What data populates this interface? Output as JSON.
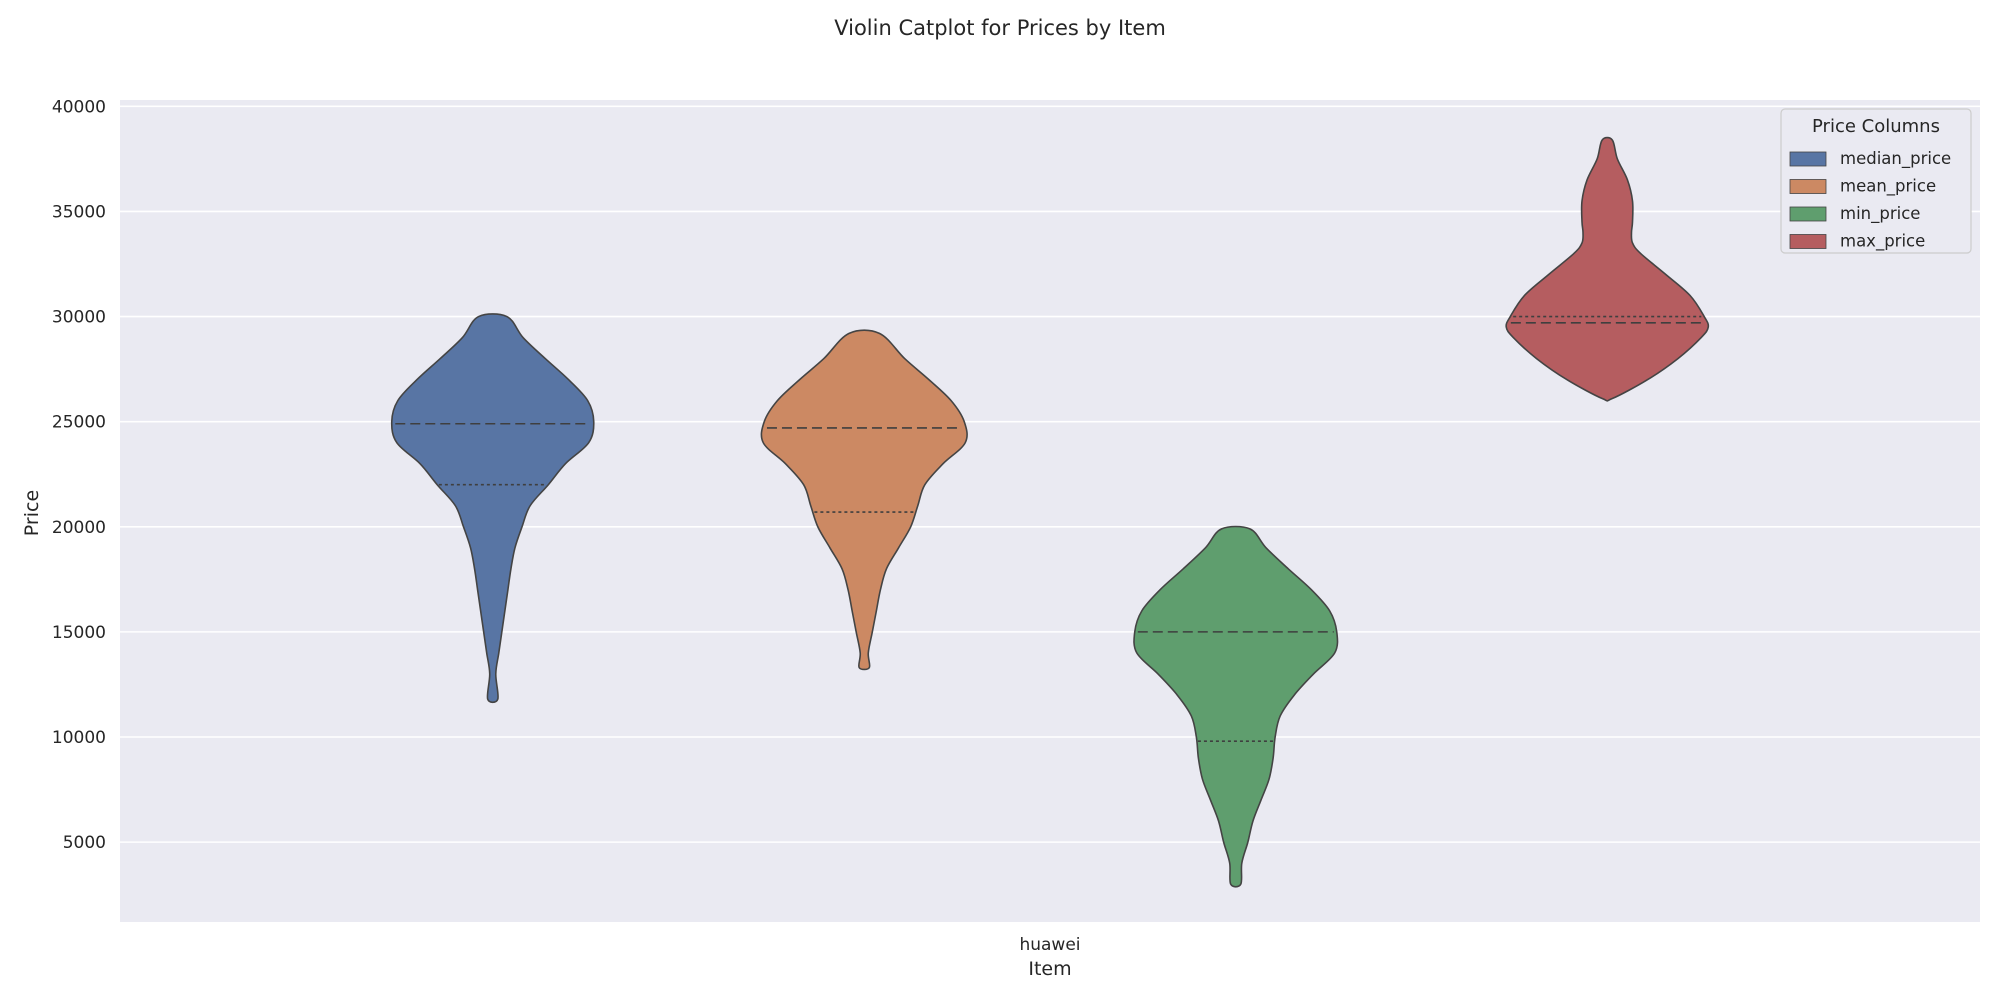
{
  "chart_data": {
    "type": "violin",
    "title": "Violin Catplot for Prices by Item",
    "xlabel": "Item",
    "ylabel": "Price",
    "categories": [
      "huawei"
    ],
    "ylim": [
      1200,
      40300
    ],
    "yticks": [
      5000,
      10000,
      15000,
      20000,
      25000,
      30000,
      35000,
      40000
    ],
    "grid": true,
    "legend": {
      "title": "Price Columns",
      "position": "top-right"
    },
    "series": [
      {
        "name": "median_price",
        "color": "#5875a4",
        "min": 11800,
        "max": 30000,
        "q1": 22000,
        "median": 24900,
        "q3": 24900,
        "profile": [
          [
            30000,
            0.14
          ],
          [
            29000,
            0.3
          ],
          [
            28000,
            0.52
          ],
          [
            27000,
            0.75
          ],
          [
            26000,
            0.94
          ],
          [
            25000,
            1.0
          ],
          [
            24000,
            0.95
          ],
          [
            23000,
            0.72
          ],
          [
            22000,
            0.55
          ],
          [
            21000,
            0.37
          ],
          [
            20000,
            0.29
          ],
          [
            19000,
            0.22
          ],
          [
            18000,
            0.18
          ],
          [
            17000,
            0.15
          ],
          [
            16000,
            0.12
          ],
          [
            15000,
            0.09
          ],
          [
            14000,
            0.06
          ],
          [
            13000,
            0.03
          ],
          [
            11800,
            0.05
          ]
        ]
      },
      {
        "name": "mean_price",
        "color": "#cc8963",
        "min": 13300,
        "max": 29200,
        "q1": 20700,
        "median": 24700,
        "q3": 24700,
        "profile": [
          [
            29200,
            0.15
          ],
          [
            28000,
            0.4
          ],
          [
            27000,
            0.64
          ],
          [
            26000,
            0.86
          ],
          [
            25000,
            0.99
          ],
          [
            24000,
            1.0
          ],
          [
            23000,
            0.78
          ],
          [
            22000,
            0.6
          ],
          [
            21000,
            0.53
          ],
          [
            20000,
            0.46
          ],
          [
            19000,
            0.34
          ],
          [
            18000,
            0.22
          ],
          [
            17000,
            0.16
          ],
          [
            16000,
            0.12
          ],
          [
            15000,
            0.08
          ],
          [
            14000,
            0.04
          ],
          [
            13300,
            0.05
          ]
        ]
      },
      {
        "name": "min_price",
        "color": "#5f9e6e",
        "min": 3000,
        "max": 19900,
        "q1": 9800,
        "median": 15000,
        "q3": 15000,
        "profile": [
          [
            19900,
            0.14
          ],
          [
            19000,
            0.3
          ],
          [
            18000,
            0.52
          ],
          [
            17000,
            0.75
          ],
          [
            16000,
            0.93
          ],
          [
            15000,
            1.0
          ],
          [
            14000,
            0.98
          ],
          [
            13000,
            0.77
          ],
          [
            12000,
            0.58
          ],
          [
            11000,
            0.44
          ],
          [
            10000,
            0.39
          ],
          [
            9000,
            0.37
          ],
          [
            8000,
            0.33
          ],
          [
            7000,
            0.25
          ],
          [
            6000,
            0.17
          ],
          [
            5000,
            0.12
          ],
          [
            4000,
            0.06
          ],
          [
            3000,
            0.05
          ]
        ]
      },
      {
        "name": "max_price",
        "color": "#b55d60",
        "min": 26100,
        "max": 38400,
        "q1": 29700,
        "median": 29700,
        "q3": 30000,
        "profile": [
          [
            38400,
            0.05
          ],
          [
            37500,
            0.1
          ],
          [
            36500,
            0.2
          ],
          [
            35500,
            0.25
          ],
          [
            34500,
            0.25
          ],
          [
            34000,
            0.24
          ],
          [
            33500,
            0.25
          ],
          [
            33000,
            0.33
          ],
          [
            32000,
            0.58
          ],
          [
            31000,
            0.82
          ],
          [
            30000,
            0.96
          ],
          [
            29500,
            1.0
          ],
          [
            29000,
            0.93
          ],
          [
            28000,
            0.7
          ],
          [
            27000,
            0.4
          ],
          [
            26100,
            0.05
          ]
        ]
      }
    ]
  }
}
